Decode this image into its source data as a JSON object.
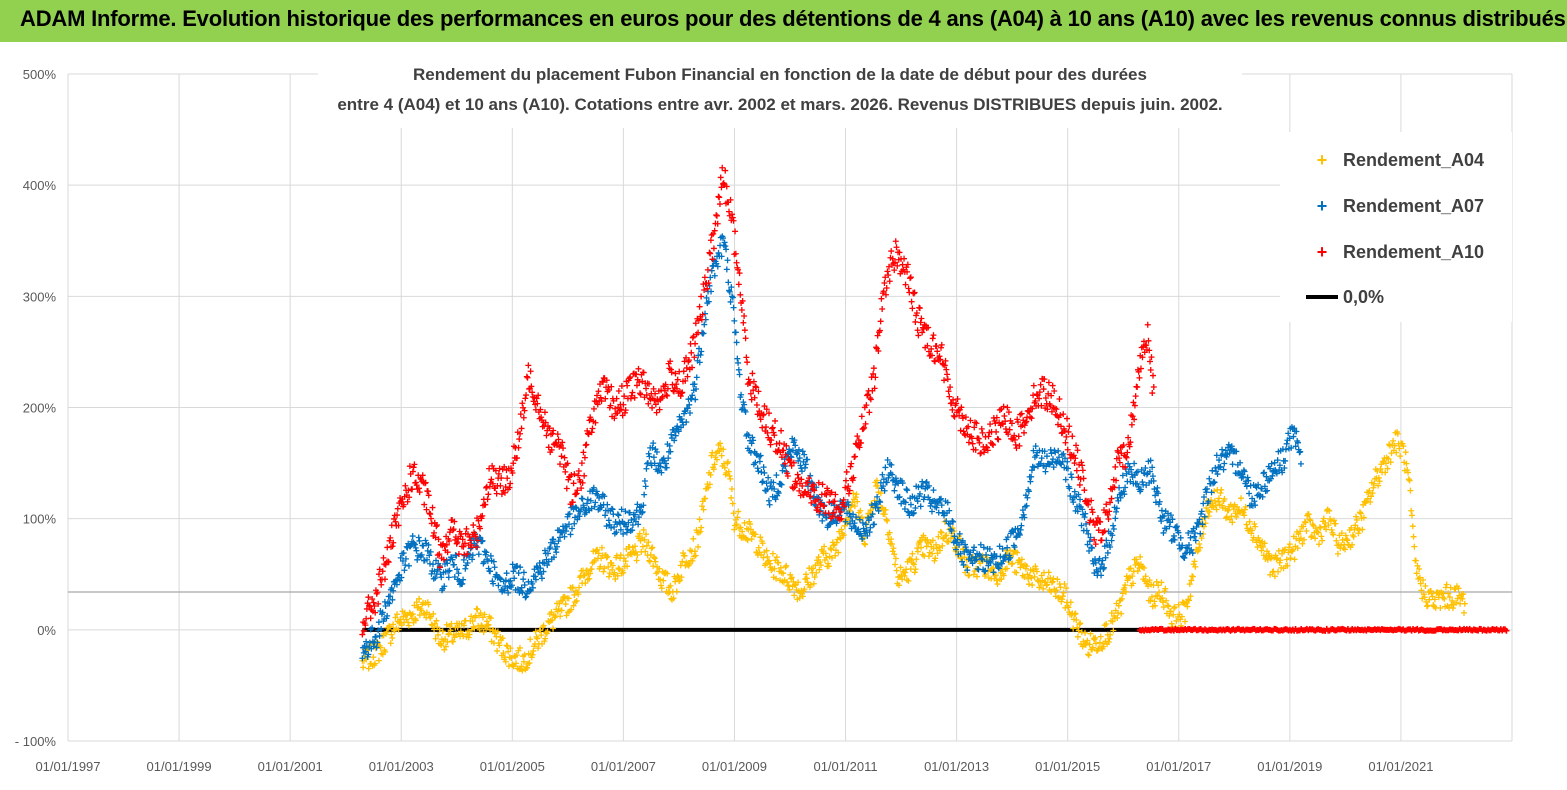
{
  "header": {
    "title": "ADAM Informe. Evolution historique des performances en euros pour des détentions de 4 ans (A04) à 10 ans (A10) avec les revenus connus distribués"
  },
  "colors": {
    "banner": "#92d050",
    "a04": "#ffc000",
    "a07": "#0070c0",
    "a10": "#ff0000",
    "zero": "#000000",
    "grid": "#d9d9d9"
  },
  "chart_data": {
    "type": "scatter",
    "title_lines": [
      "Rendement du placement Fubon Financial  en fonction de la date de début pour des durées",
      "entre 4 (A04) et 10 ans (A10). Cotations entre avr. 2002 et mars. 2026. Revenus DISTRIBUES depuis juin. 2002."
    ],
    "xlabel": "",
    "ylabel": "",
    "x_range": [
      "1997-01-01",
      "2023-01-01"
    ],
    "x_tick_labels": [
      "01/01/1997",
      "01/01/1999",
      "01/01/2001",
      "01/01/2003",
      "01/01/2005",
      "01/01/2007",
      "01/01/2009",
      "01/01/2011",
      "01/01/2013",
      "01/01/2015",
      "01/01/2017",
      "01/01/2019",
      "01/01/2021"
    ],
    "ylim": [
      -100,
      500
    ],
    "y_tick_labels": [
      "500%",
      "400%",
      "300%",
      "200%",
      "100%",
      "0%",
      "- 100%"
    ],
    "legend_position": "top-right",
    "series": [
      {
        "name": "Rendement_A04",
        "points": [
          [
            2002.3,
            -30
          ],
          [
            2002.6,
            -18
          ],
          [
            2002.9,
            5
          ],
          [
            2003.2,
            15
          ],
          [
            2003.45,
            22
          ],
          [
            2003.7,
            -8
          ],
          [
            2003.9,
            -5
          ],
          [
            2004.1,
            -3
          ],
          [
            2004.35,
            10
          ],
          [
            2004.55,
            5
          ],
          [
            2004.8,
            -15
          ],
          [
            2005.0,
            -25
          ],
          [
            2005.2,
            -28
          ],
          [
            2005.45,
            -10
          ],
          [
            2005.65,
            5
          ],
          [
            2005.9,
            18
          ],
          [
            2006.15,
            35
          ],
          [
            2006.4,
            58
          ],
          [
            2006.6,
            65
          ],
          [
            2006.8,
            55
          ],
          [
            2007.0,
            60
          ],
          [
            2007.2,
            68
          ],
          [
            2007.35,
            80
          ],
          [
            2007.5,
            70
          ],
          [
            2007.7,
            45
          ],
          [
            2007.9,
            35
          ],
          [
            2008.1,
            65
          ],
          [
            2008.3,
            75
          ],
          [
            2008.45,
            110
          ],
          [
            2008.6,
            150
          ],
          [
            2008.75,
            160
          ],
          [
            2008.9,
            140
          ],
          [
            2009.0,
            100
          ],
          [
            2009.2,
            90
          ],
          [
            2009.4,
            80
          ],
          [
            2009.6,
            60
          ],
          [
            2009.8,
            55
          ],
          [
            2010.0,
            45
          ],
          [
            2010.2,
            35
          ],
          [
            2010.4,
            50
          ],
          [
            2010.6,
            65
          ],
          [
            2010.8,
            70
          ],
          [
            2011.0,
            100
          ],
          [
            2011.15,
            120
          ],
          [
            2011.35,
            85
          ],
          [
            2011.55,
            130
          ],
          [
            2011.75,
            100
          ],
          [
            2011.95,
            45
          ],
          [
            2012.15,
            55
          ],
          [
            2012.4,
            75
          ],
          [
            2012.6,
            70
          ],
          [
            2012.8,
            90
          ],
          [
            2013.0,
            80
          ],
          [
            2013.2,
            55
          ],
          [
            2013.45,
            60
          ],
          [
            2013.7,
            50
          ],
          [
            2013.95,
            65
          ],
          [
            2014.2,
            55
          ],
          [
            2014.45,
            45
          ],
          [
            2014.7,
            40
          ],
          [
            2014.95,
            30
          ],
          [
            2015.15,
            5
          ],
          [
            2015.35,
            -15
          ],
          [
            2015.55,
            -10
          ],
          [
            2015.75,
            0
          ],
          [
            2015.95,
            20
          ],
          [
            2016.1,
            45
          ],
          [
            2016.3,
            60
          ],
          [
            2016.5,
            30
          ],
          [
            2016.7,
            35
          ],
          [
            2016.9,
            10
          ],
          [
            2017.1,
            15
          ],
          [
            2017.3,
            60
          ],
          [
            2017.5,
            110
          ],
          [
            2017.7,
            120
          ],
          [
            2017.9,
            105
          ],
          [
            2018.1,
            110
          ],
          [
            2018.3,
            95
          ],
          [
            2018.5,
            75
          ],
          [
            2018.7,
            55
          ],
          [
            2018.9,
            65
          ],
          [
            2019.1,
            75
          ],
          [
            2019.3,
            95
          ],
          [
            2019.5,
            85
          ],
          [
            2019.7,
            100
          ],
          [
            2019.9,
            75
          ],
          [
            2020.1,
            85
          ],
          [
            2020.3,
            100
          ],
          [
            2020.5,
            130
          ],
          [
            2020.7,
            150
          ],
          [
            2020.9,
            170
          ],
          [
            2021.05,
            160
          ],
          [
            2021.15,
            130
          ],
          [
            2021.25,
            60
          ],
          [
            2021.4,
            35
          ],
          [
            2021.6,
            25
          ],
          [
            2021.8,
            30
          ],
          [
            2022.0,
            30
          ],
          [
            2022.15,
            25
          ]
        ]
      },
      {
        "name": "Rendement_A07",
        "points": [
          [
            2002.3,
            -20
          ],
          [
            2002.55,
            -5
          ],
          [
            2002.8,
            30
          ],
          [
            2003.0,
            55
          ],
          [
            2003.2,
            75
          ],
          [
            2003.45,
            70
          ],
          [
            2003.7,
            45
          ],
          [
            2003.9,
            60
          ],
          [
            2004.1,
            50
          ],
          [
            2004.35,
            80
          ],
          [
            2004.6,
            60
          ],
          [
            2004.8,
            35
          ],
          [
            2005.0,
            50
          ],
          [
            2005.25,
            40
          ],
          [
            2005.5,
            55
          ],
          [
            2005.7,
            70
          ],
          [
            2005.9,
            90
          ],
          [
            2006.1,
            100
          ],
          [
            2006.3,
            110
          ],
          [
            2006.5,
            120
          ],
          [
            2006.7,
            105
          ],
          [
            2006.9,
            95
          ],
          [
            2007.1,
            100
          ],
          [
            2007.3,
            105
          ],
          [
            2007.5,
            160
          ],
          [
            2007.7,
            145
          ],
          [
            2007.9,
            170
          ],
          [
            2008.1,
            190
          ],
          [
            2008.3,
            220
          ],
          [
            2008.45,
            280
          ],
          [
            2008.6,
            320
          ],
          [
            2008.8,
            350
          ],
          [
            2008.95,
            300
          ],
          [
            2009.1,
            220
          ],
          [
            2009.25,
            170
          ],
          [
            2009.45,
            150
          ],
          [
            2009.65,
            120
          ],
          [
            2009.85,
            140
          ],
          [
            2010.05,
            165
          ],
          [
            2010.25,
            150
          ],
          [
            2010.5,
            115
          ],
          [
            2010.7,
            100
          ],
          [
            2010.9,
            110
          ],
          [
            2011.1,
            100
          ],
          [
            2011.3,
            90
          ],
          [
            2011.55,
            105
          ],
          [
            2011.75,
            145
          ],
          [
            2011.95,
            130
          ],
          [
            2012.15,
            110
          ],
          [
            2012.4,
            125
          ],
          [
            2012.65,
            110
          ],
          [
            2012.85,
            105
          ],
          [
            2013.0,
            80
          ],
          [
            2013.2,
            60
          ],
          [
            2013.45,
            65
          ],
          [
            2013.7,
            60
          ],
          [
            2013.95,
            75
          ],
          [
            2014.15,
            95
          ],
          [
            2014.4,
            155
          ],
          [
            2014.65,
            150
          ],
          [
            2014.9,
            160
          ],
          [
            2015.1,
            120
          ],
          [
            2015.3,
            100
          ],
          [
            2015.5,
            50
          ],
          [
            2015.7,
            70
          ],
          [
            2015.9,
            115
          ],
          [
            2016.1,
            145
          ],
          [
            2016.3,
            130
          ],
          [
            2016.5,
            145
          ],
          [
            2016.7,
            100
          ],
          [
            2016.9,
            90
          ],
          [
            2017.1,
            75
          ],
          [
            2017.3,
            80
          ],
          [
            2017.5,
            120
          ],
          [
            2017.7,
            150
          ],
          [
            2017.9,
            155
          ],
          [
            2018.1,
            150
          ],
          [
            2018.3,
            120
          ],
          [
            2018.5,
            130
          ],
          [
            2018.7,
            145
          ],
          [
            2018.9,
            155
          ],
          [
            2019.0,
            175
          ],
          [
            2019.1,
            170
          ],
          [
            2019.2,
            155
          ]
        ]
      },
      {
        "name": "Rendement_A10",
        "points": [
          [
            2002.3,
            5
          ],
          [
            2002.55,
            30
          ],
          [
            2002.8,
            75
          ],
          [
            2003.0,
            110
          ],
          [
            2003.2,
            140
          ],
          [
            2003.45,
            120
          ],
          [
            2003.7,
            70
          ],
          [
            2003.9,
            90
          ],
          [
            2004.1,
            75
          ],
          [
            2004.35,
            85
          ],
          [
            2004.6,
            140
          ],
          [
            2004.8,
            130
          ],
          [
            2005.0,
            145
          ],
          [
            2005.15,
            180
          ],
          [
            2005.3,
            230
          ],
          [
            2005.5,
            200
          ],
          [
            2005.7,
            170
          ],
          [
            2005.9,
            160
          ],
          [
            2006.05,
            125
          ],
          [
            2006.25,
            140
          ],
          [
            2006.45,
            195
          ],
          [
            2006.65,
            215
          ],
          [
            2006.85,
            200
          ],
          [
            2007.05,
            210
          ],
          [
            2007.25,
            225
          ],
          [
            2007.45,
            215
          ],
          [
            2007.65,
            205
          ],
          [
            2007.85,
            230
          ],
          [
            2008.05,
            220
          ],
          [
            2008.25,
            250
          ],
          [
            2008.45,
            300
          ],
          [
            2008.65,
            360
          ],
          [
            2008.8,
            410
          ],
          [
            2008.95,
            370
          ],
          [
            2009.1,
            310
          ],
          [
            2009.25,
            230
          ],
          [
            2009.45,
            200
          ],
          [
            2009.65,
            180
          ],
          [
            2009.85,
            165
          ],
          [
            2010.05,
            140
          ],
          [
            2010.25,
            125
          ],
          [
            2010.5,
            120
          ],
          [
            2010.7,
            115
          ],
          [
            2010.9,
            110
          ],
          [
            2011.1,
            140
          ],
          [
            2011.3,
            180
          ],
          [
            2011.5,
            220
          ],
          [
            2011.7,
            310
          ],
          [
            2011.9,
            340
          ],
          [
            2012.1,
            320
          ],
          [
            2012.3,
            280
          ],
          [
            2012.5,
            260
          ],
          [
            2012.7,
            250
          ],
          [
            2012.9,
            210
          ],
          [
            2013.1,
            190
          ],
          [
            2013.3,
            175
          ],
          [
            2013.5,
            165
          ],
          [
            2013.7,
            180
          ],
          [
            2013.9,
            190
          ],
          [
            2014.1,
            175
          ],
          [
            2014.3,
            200
          ],
          [
            2014.5,
            215
          ],
          [
            2014.7,
            210
          ],
          [
            2014.9,
            190
          ],
          [
            2015.1,
            160
          ],
          [
            2015.3,
            130
          ],
          [
            2015.5,
            85
          ],
          [
            2015.7,
            100
          ],
          [
            2015.9,
            150
          ],
          [
            2016.1,
            165
          ],
          [
            2016.3,
            240
          ],
          [
            2016.45,
            270
          ],
          [
            2016.55,
            210
          ]
        ]
      },
      {
        "name": "0,0%",
        "segments": [
          [
            2002.3,
            2016.3,
            0
          ]
        ]
      }
    ],
    "a10_zero_segment": [
      2016.3,
      2022.9,
      0
    ]
  }
}
